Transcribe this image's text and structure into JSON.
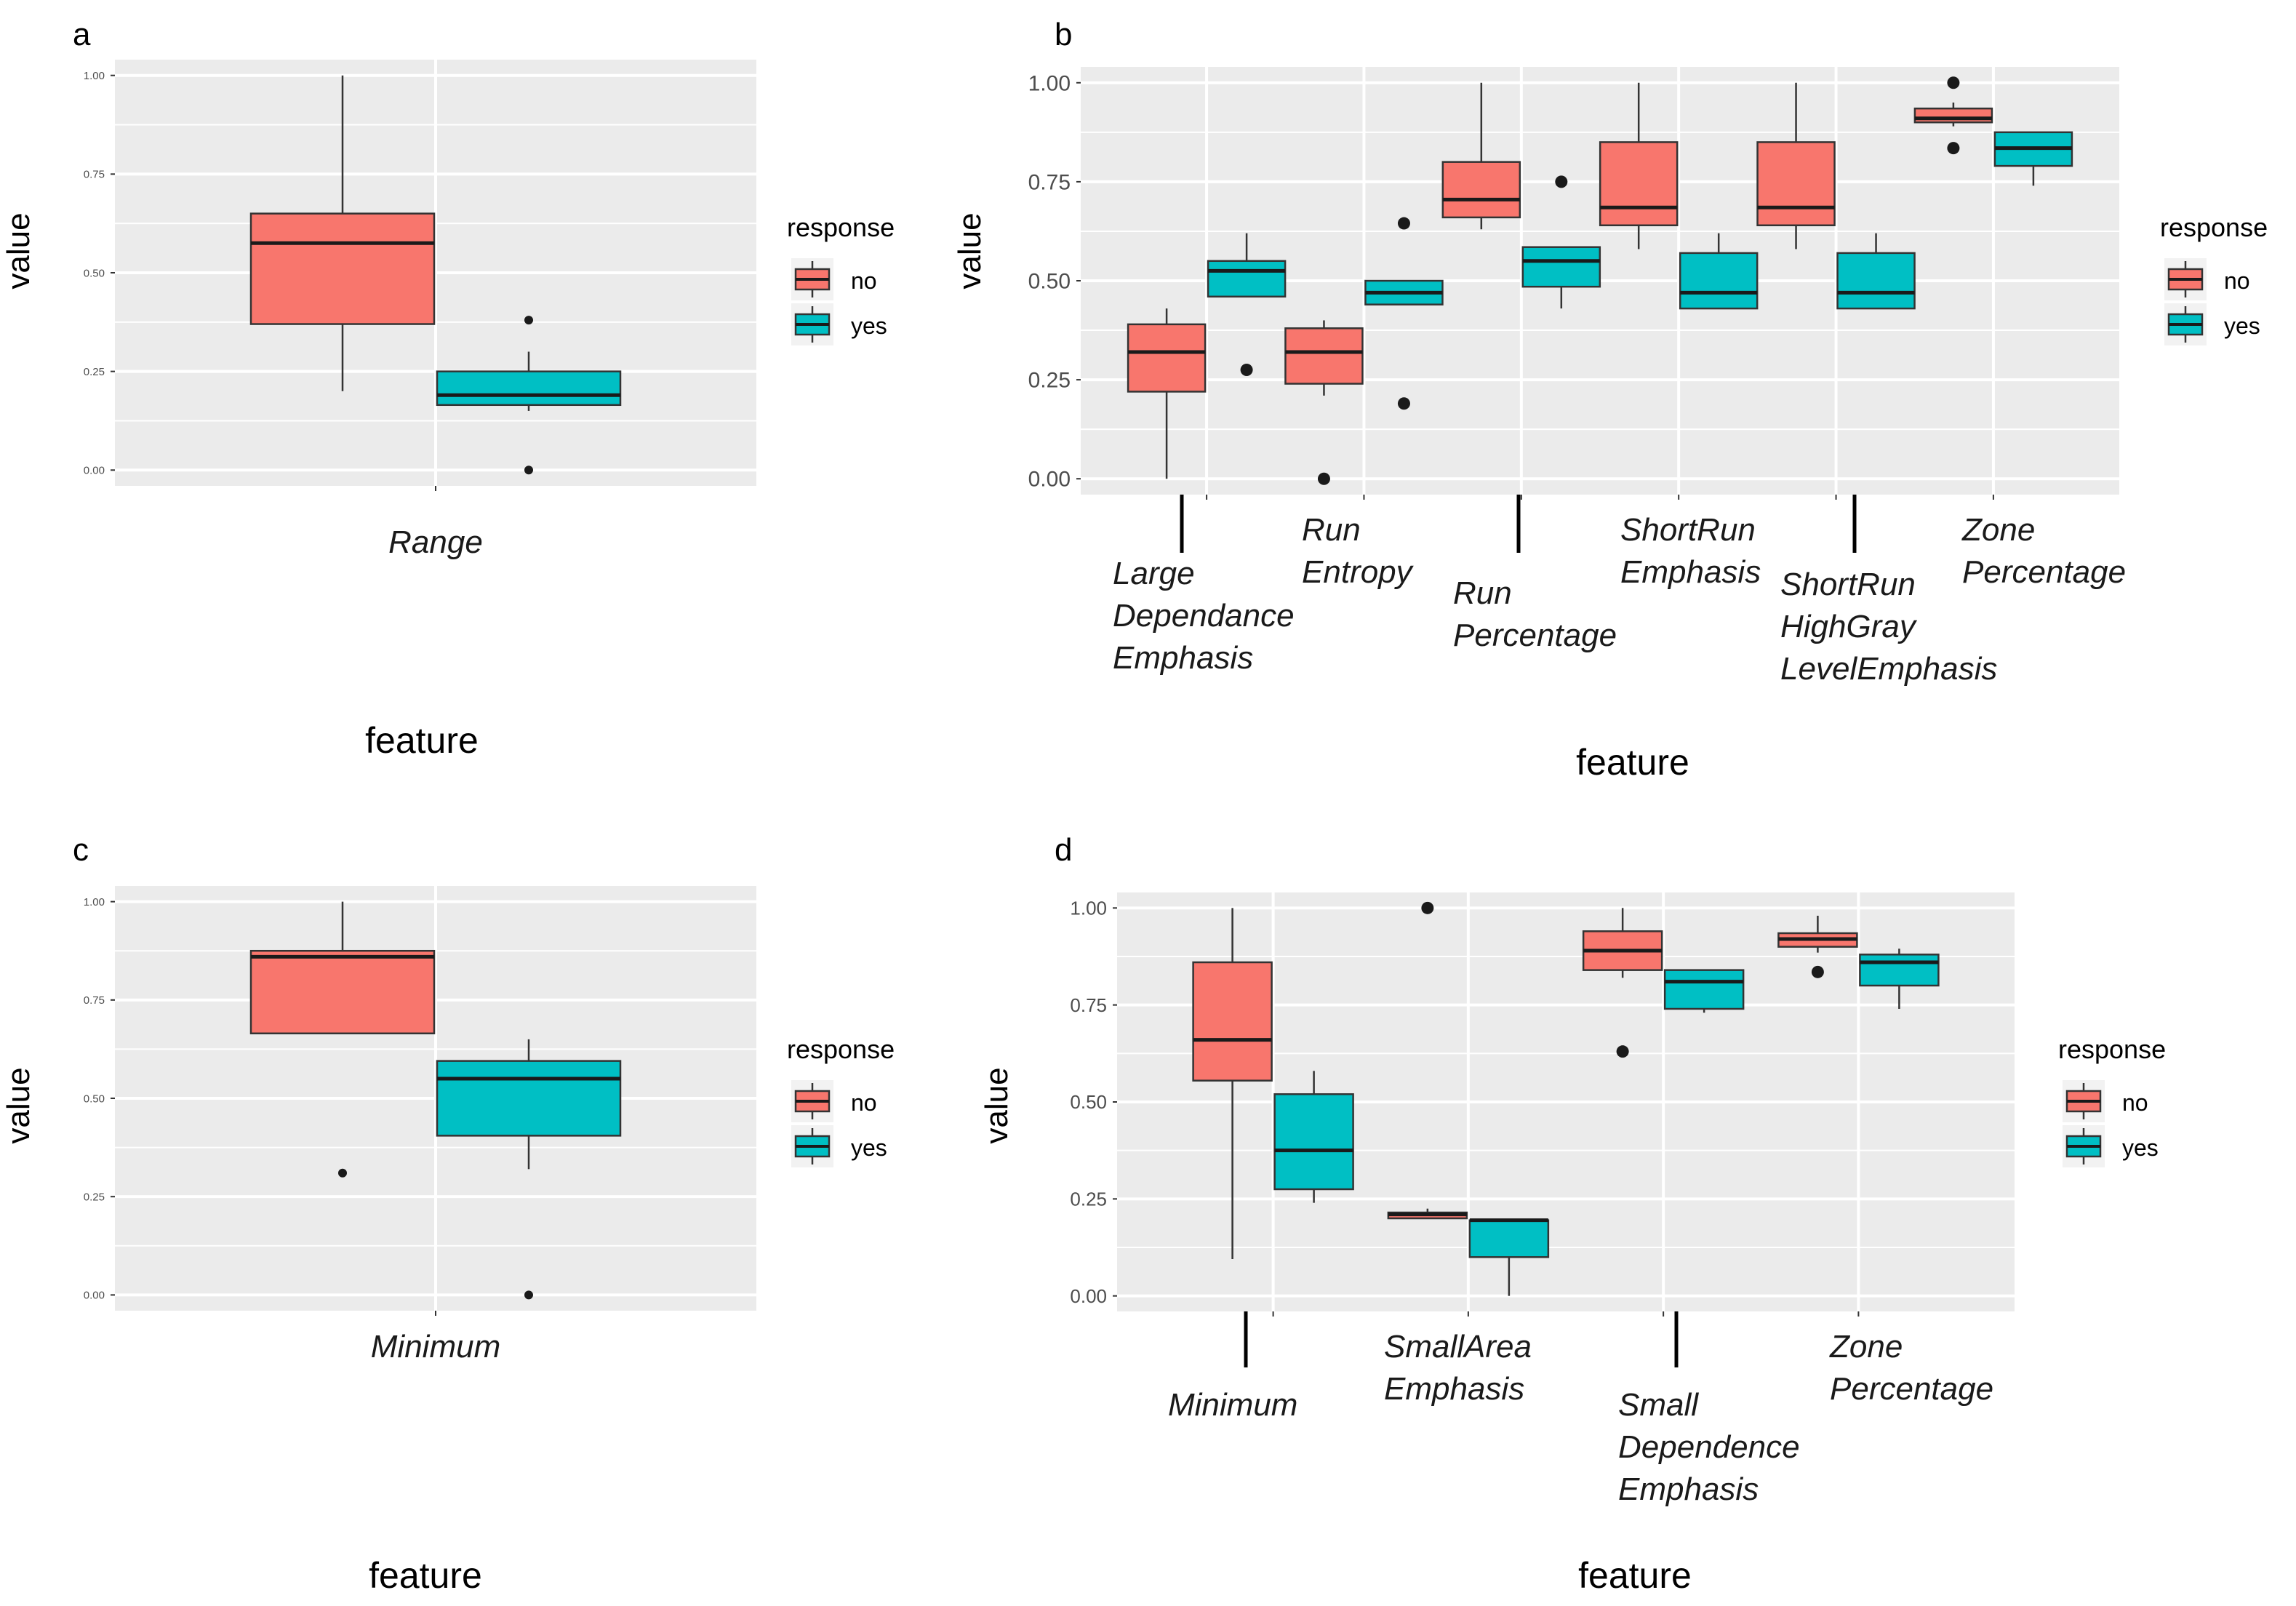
{
  "figure": {
    "legend_title": "response",
    "legend_labels": [
      "no",
      "yes"
    ],
    "colors": {
      "no": "#F8766D",
      "yes": "#00BFC4",
      "panel": "#EBEBEB",
      "grid": "#FFFFFF",
      "stroke": "#333333"
    }
  },
  "chart_data": [
    {
      "panel": "a",
      "type": "boxplot",
      "xlabel": "feature",
      "ylabel": "value",
      "ylim": [
        -0.04,
        1.04
      ],
      "yticks": [
        "0.00",
        "0.25",
        "0.50",
        "0.75",
        "1.00"
      ],
      "categories": [
        [
          "Range"
        ]
      ],
      "series": [
        {
          "name": "no",
          "boxes": [
            {
              "min": 0.2,
              "q1": 0.37,
              "median": 0.575,
              "q3": 0.65,
              "max": 1.0,
              "outliers": []
            }
          ]
        },
        {
          "name": "yes",
          "boxes": [
            {
              "min": 0.15,
              "q1": 0.165,
              "median": 0.19,
              "q3": 0.25,
              "max": 0.3,
              "outliers": [
                0.38,
                0.0
              ]
            }
          ]
        }
      ]
    },
    {
      "panel": "b",
      "type": "boxplot",
      "xlabel": "feature",
      "ylabel": "value",
      "ylim": [
        -0.04,
        1.04
      ],
      "yticks": [
        "0.00",
        "0.25",
        "0.50",
        "0.75",
        "1.00"
      ],
      "categories": [
        [
          "Large",
          "Dependance",
          "Emphasis"
        ],
        [
          "Run",
          "Entropy"
        ],
        [
          "Run",
          "Percentage"
        ],
        [
          "ShortRun",
          "Emphasis"
        ],
        [
          "ShortRun",
          "HighGray",
          "LevelEmphasis"
        ],
        [
          "Zone",
          "Percentage"
        ]
      ],
      "series": [
        {
          "name": "no",
          "boxes": [
            {
              "min": 0.0,
              "q1": 0.22,
              "median": 0.32,
              "q3": 0.39,
              "max": 0.43,
              "outliers": []
            },
            {
              "min": 0.21,
              "q1": 0.24,
              "median": 0.32,
              "q3": 0.38,
              "max": 0.4,
              "outliers": [
                0.0
              ]
            },
            {
              "min": 0.63,
              "q1": 0.66,
              "median": 0.705,
              "q3": 0.8,
              "max": 1.0,
              "outliers": []
            },
            {
              "min": 0.58,
              "q1": 0.64,
              "median": 0.685,
              "q3": 0.85,
              "max": 1.0,
              "outliers": []
            },
            {
              "min": 0.58,
              "q1": 0.64,
              "median": 0.685,
              "q3": 0.85,
              "max": 1.0,
              "outliers": []
            },
            {
              "min": 0.89,
              "q1": 0.9,
              "median": 0.91,
              "q3": 0.935,
              "max": 0.95,
              "outliers": [
                1.0,
                0.835
              ]
            }
          ]
        },
        {
          "name": "yes",
          "boxes": [
            {
              "min": 0.46,
              "q1": 0.46,
              "median": 0.525,
              "q3": 0.55,
              "max": 0.62,
              "outliers": [
                0.275
              ]
            },
            {
              "min": 0.44,
              "q1": 0.44,
              "median": 0.47,
              "q3": 0.5,
              "max": 0.5,
              "outliers": [
                0.645,
                0.19
              ]
            },
            {
              "min": 0.43,
              "q1": 0.485,
              "median": 0.55,
              "q3": 0.585,
              "max": 0.585,
              "outliers": [
                0.75
              ]
            },
            {
              "min": 0.43,
              "q1": 0.43,
              "median": 0.47,
              "q3": 0.57,
              "max": 0.62,
              "outliers": []
            },
            {
              "min": 0.43,
              "q1": 0.43,
              "median": 0.47,
              "q3": 0.57,
              "max": 0.62,
              "outliers": []
            },
            {
              "min": 0.74,
              "q1": 0.79,
              "median": 0.835,
              "q3": 0.875,
              "max": 0.875,
              "outliers": []
            }
          ]
        }
      ]
    },
    {
      "panel": "c",
      "type": "boxplot",
      "xlabel": "feature",
      "ylabel": "value",
      "ylim": [
        -0.04,
        1.04
      ],
      "yticks": [
        "0.00",
        "0.25",
        "0.50",
        "0.75",
        "1.00"
      ],
      "categories": [
        [
          "Minimum"
        ]
      ],
      "series": [
        {
          "name": "no",
          "boxes": [
            {
              "min": 0.665,
              "q1": 0.665,
              "median": 0.86,
              "q3": 0.875,
              "max": 1.0,
              "outliers": [
                0.31
              ]
            }
          ]
        },
        {
          "name": "yes",
          "boxes": [
            {
              "min": 0.32,
              "q1": 0.405,
              "median": 0.55,
              "q3": 0.595,
              "max": 0.65,
              "outliers": [
                0.0
              ]
            }
          ]
        }
      ]
    },
    {
      "panel": "d",
      "type": "boxplot",
      "xlabel": "feature",
      "ylabel": "value",
      "ylim": [
        -0.04,
        1.04
      ],
      "yticks": [
        "0.00",
        "0.25",
        "0.50",
        "0.75",
        "1.00"
      ],
      "categories": [
        [
          "Minimum"
        ],
        [
          "SmallArea",
          "Emphasis"
        ],
        [
          "Small",
          "Dependence",
          "Emphasis"
        ],
        [
          "Zone",
          "Percentage"
        ]
      ],
      "series": [
        {
          "name": "no",
          "boxes": [
            {
              "min": 0.095,
              "q1": 0.555,
              "median": 0.66,
              "q3": 0.86,
              "max": 1.0,
              "outliers": []
            },
            {
              "min": 0.2,
              "q1": 0.2,
              "median": 0.21,
              "q3": 0.215,
              "max": 0.225,
              "outliers": [
                1.0
              ]
            },
            {
              "min": 0.82,
              "q1": 0.84,
              "median": 0.89,
              "q3": 0.94,
              "max": 1.0,
              "outliers": [
                0.63
              ]
            },
            {
              "min": 0.885,
              "q1": 0.9,
              "median": 0.92,
              "q3": 0.935,
              "max": 0.98,
              "outliers": [
                0.835
              ]
            }
          ]
        },
        {
          "name": "yes",
          "boxes": [
            {
              "min": 0.24,
              "q1": 0.275,
              "median": 0.375,
              "q3": 0.52,
              "max": 0.58,
              "outliers": []
            },
            {
              "min": 0.0,
              "q1": 0.1,
              "median": 0.195,
              "q3": 0.195,
              "max": 0.195,
              "outliers": []
            },
            {
              "min": 0.73,
              "q1": 0.74,
              "median": 0.81,
              "q3": 0.84,
              "max": 0.84,
              "outliers": []
            },
            {
              "min": 0.74,
              "q1": 0.8,
              "median": 0.86,
              "q3": 0.88,
              "max": 0.895,
              "outliers": []
            }
          ]
        }
      ]
    }
  ]
}
